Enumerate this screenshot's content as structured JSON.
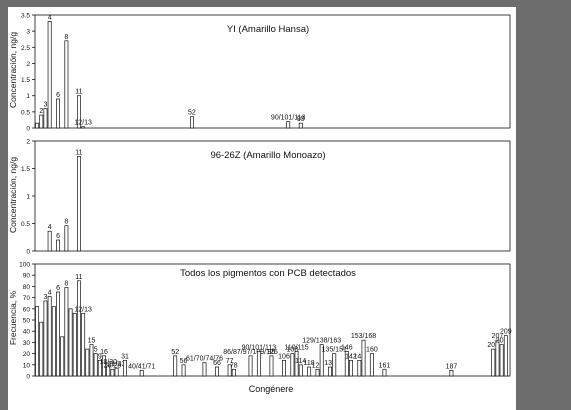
{
  "page": {
    "background": "#6d6d6d",
    "panel_background": "#ffffff",
    "bar_color": "#ffffff",
    "axis_color": "#111111"
  },
  "chart_data": [
    {
      "type": "bar",
      "title": "YI (Amarillo Hansa)",
      "xlabel": "",
      "ylabel": "Concentración, ng/g",
      "ylim": [
        0,
        3.5
      ],
      "yticks": [
        "0",
        "0.5",
        "1",
        "1.5",
        "2",
        "2.5",
        "3",
        "3.5"
      ],
      "grid": false,
      "bars": [
        {
          "position": 1,
          "value": 0.15,
          "label": ""
        },
        {
          "position": 2,
          "value": 0.4,
          "label": "2"
        },
        {
          "position": 3,
          "value": 0.6,
          "label": "3"
        },
        {
          "position": 4,
          "value": 3.3,
          "label": "4"
        },
        {
          "position": 6,
          "value": 0.9,
          "label": "6"
        },
        {
          "position": 8,
          "value": 2.7,
          "label": "8"
        },
        {
          "position": 11,
          "value": 1.0,
          "label": "11"
        },
        {
          "position": 12,
          "value": 0.04,
          "label": "12/13"
        },
        {
          "position": 38,
          "value": 0.35,
          "label": "52"
        },
        {
          "position": 61,
          "value": 0.2,
          "label": "90/101/113"
        },
        {
          "position": 64,
          "value": 0.15,
          "label": "95"
        }
      ]
    },
    {
      "type": "bar",
      "title": "96-26Z (Amarillo Monoazo)",
      "xlabel": "",
      "ylabel": "Concentración, ng/g",
      "ylim": [
        0,
        2
      ],
      "yticks": [
        "0",
        "0.5",
        "1",
        "1.5",
        "2"
      ],
      "grid": false,
      "bars": [
        {
          "position": 4,
          "value": 0.36,
          "label": "4"
        },
        {
          "position": 6,
          "value": 0.2,
          "label": "6"
        },
        {
          "position": 8,
          "value": 0.46,
          "label": "8"
        },
        {
          "position": 11,
          "value": 1.72,
          "label": "11"
        }
      ]
    },
    {
      "type": "bar",
      "title": "Todos los pigmentos con PCB detectados",
      "xlabel": "Congénere",
      "ylabel": "Frecuencia, %",
      "ylim": [
        0,
        100
      ],
      "yticks": [
        "0",
        "10",
        "20",
        "30",
        "40",
        "50",
        "60",
        "70",
        "80",
        "90",
        "100"
      ],
      "grid": false,
      "bars": [
        {
          "position": 1,
          "value": 62,
          "label": ""
        },
        {
          "position": 2,
          "value": 48,
          "label": ""
        },
        {
          "position": 3,
          "value": 67,
          "label": "3"
        },
        {
          "position": 4,
          "value": 71,
          "label": "4"
        },
        {
          "position": 5,
          "value": 62,
          "label": ""
        },
        {
          "position": 6,
          "value": 75,
          "label": "6"
        },
        {
          "position": 7,
          "value": 35,
          "label": ""
        },
        {
          "position": 8,
          "value": 79,
          "label": "8"
        },
        {
          "position": 9,
          "value": 60,
          "label": ""
        },
        {
          "position": 10,
          "value": 56,
          "label": ""
        },
        {
          "position": 11,
          "value": 85,
          "label": "11"
        },
        {
          "position": 12,
          "value": 56,
          "label": "12/13"
        },
        {
          "position": 13,
          "value": 24,
          "label": ""
        },
        {
          "position": 14,
          "value": 28,
          "label": "15"
        },
        {
          "position": 15,
          "value": 20,
          "label": "5"
        },
        {
          "position": 16,
          "value": 14,
          "label": "9"
        },
        {
          "position": 17,
          "value": 18,
          "label": "16"
        },
        {
          "position": 18,
          "value": 9,
          "label": "18/30"
        },
        {
          "position": 19,
          "value": 6,
          "label": "20/28"
        },
        {
          "position": 20,
          "value": 7,
          "label": "21/33"
        },
        {
          "position": 22,
          "value": 14,
          "label": "31"
        },
        {
          "position": 26,
          "value": 5,
          "label": "40/41/71"
        },
        {
          "position": 34,
          "value": 18,
          "label": "52"
        },
        {
          "position": 36,
          "value": 10,
          "label": "56"
        },
        {
          "position": 41,
          "value": 12,
          "label": "61/70/74/76"
        },
        {
          "position": 44,
          "value": 8,
          "label": "66"
        },
        {
          "position": 47,
          "value": 10,
          "label": "77"
        },
        {
          "position": 48,
          "value": 6,
          "label": "78"
        },
        {
          "position": 52,
          "value": 18,
          "label": "86/87/97/109/125"
        },
        {
          "position": 54,
          "value": 22,
          "label": "90/101/113"
        },
        {
          "position": 57,
          "value": 18,
          "label": "95"
        },
        {
          "position": 60,
          "value": 14,
          "label": "106"
        },
        {
          "position": 62,
          "value": 20,
          "label": "108"
        },
        {
          "position": 63,
          "value": 22,
          "label": "110/115"
        },
        {
          "position": 64,
          "value": 10,
          "label": "114"
        },
        {
          "position": 66,
          "value": 8,
          "label": "118"
        },
        {
          "position": 68,
          "value": 6,
          "label": "123"
        },
        {
          "position": 69,
          "value": 28,
          "label": "129/138/163"
        },
        {
          "position": 71,
          "value": 8,
          "label": "132"
        },
        {
          "position": 72,
          "value": 20,
          "label": "135/151"
        },
        {
          "position": 75,
          "value": 22,
          "label": "146"
        },
        {
          "position": 76,
          "value": 14,
          "label": "142"
        },
        {
          "position": 78,
          "value": 14,
          "label": "149"
        },
        {
          "position": 79,
          "value": 32,
          "label": "153/168"
        },
        {
          "position": 81,
          "value": 20,
          "label": "160"
        },
        {
          "position": 84,
          "value": 6,
          "label": "161"
        },
        {
          "position": 100,
          "value": 5,
          "label": "187"
        },
        {
          "position": 110,
          "value": 24,
          "label": "206"
        },
        {
          "position": 111,
          "value": 32,
          "label": "207"
        },
        {
          "position": 112,
          "value": 28,
          "label": "208"
        },
        {
          "position": 113,
          "value": 36,
          "label": "209"
        }
      ]
    }
  ]
}
